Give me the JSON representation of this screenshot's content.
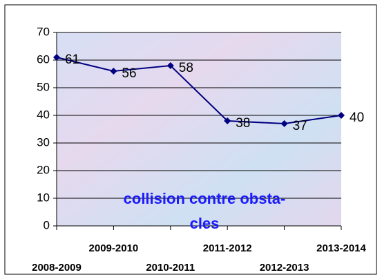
{
  "chart_data": {
    "type": "line",
    "title_lines": [
      "collision contre obsta-",
      "cles"
    ],
    "categories": [
      "2008-2009",
      "2009-2010",
      "2010-2011",
      "2011-2012",
      "2012-2013",
      "2013-2014"
    ],
    "series": [
      {
        "color": "#000080",
        "values": [
          61,
          56,
          58,
          38,
          37,
          40
        ]
      }
    ],
    "ylim": [
      0,
      70
    ],
    "yticks": [
      0,
      10,
      20,
      30,
      40,
      50,
      60,
      70
    ],
    "grid": true,
    "data_labels": true
  }
}
